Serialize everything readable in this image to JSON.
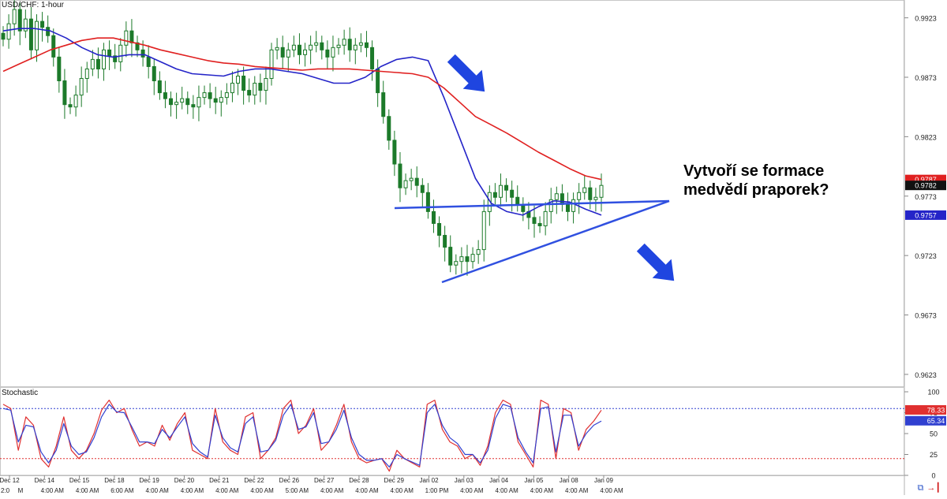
{
  "header": {
    "symbol_label": "USD/CHF: 1-hour"
  },
  "annotation": {
    "line1": "Vytvoří se formace",
    "line2": "medvědí praporek?"
  },
  "footer": {
    "left_text": "2:0",
    "icon_sync": "compare-icon",
    "icon_exit": "exit-icon"
  },
  "colors": {
    "candle": "#1c7a2a",
    "ma_fast": "#2424c8",
    "ma_slow": "#e02020",
    "trendline": "#3050e0",
    "arrow": "#1f45e0",
    "stoch_k": "#e03030",
    "stoch_d": "#3040d0"
  },
  "chart_data": [
    {
      "type": "candlestick",
      "title": "USD/CHF: 1-hour",
      "x_ticks": [
        "Dec 12",
        "Dec 14",
        "Dec 15",
        "Dec 18",
        "Dec 19",
        "Dec 20",
        "Dec 21",
        "Dec 22",
        "Dec 26",
        "Dec 27",
        "Dec 28",
        "Dec 29",
        "Jan 02",
        "Jan 03",
        "Jan 04",
        "Jan 05",
        "Jan 08",
        "Jan 09"
      ],
      "x_sub_ticks": [
        "M",
        "4:00 AM",
        "4:00 AM",
        "6:00 AM",
        "4:00 AM",
        "4:00 AM",
        "4:00 AM",
        "4:00 AM",
        "5:00 AM",
        "4:00 AM",
        "4:00 AM",
        "4:00 AM",
        "1:00 PM",
        "4:00 AM",
        "4:00 AM",
        "4:00 AM",
        "4:00 AM",
        "4:00 AM"
      ],
      "y_ticks": [
        "0.9923",
        "0.9873",
        "0.9823",
        "0.9773",
        "0.9723",
        "0.9673",
        "0.9623"
      ],
      "ylim": [
        0.9613,
        0.9938
      ],
      "price_labels": [
        {
          "value": "0.9787",
          "color": "#e02020"
        },
        {
          "value": "0.9782",
          "color": "#111111"
        },
        {
          "value": "0.9757",
          "color": "#2424c8"
        }
      ],
      "close_values": [
        0.9905,
        0.9918,
        0.993,
        0.9912,
        0.9922,
        0.9896,
        0.992,
        0.9915,
        0.9908,
        0.989,
        0.987,
        0.985,
        0.9848,
        0.9858,
        0.9872,
        0.988,
        0.9888,
        0.988,
        0.9896,
        0.9891,
        0.9886,
        0.99,
        0.9912,
        0.9902,
        0.9896,
        0.989,
        0.9882,
        0.987,
        0.986,
        0.9855,
        0.985,
        0.9852,
        0.9855,
        0.985,
        0.9848,
        0.9856,
        0.986,
        0.9855,
        0.9852,
        0.9856,
        0.986,
        0.9868,
        0.9874,
        0.9862,
        0.9858,
        0.9868,
        0.9862,
        0.9872,
        0.9896,
        0.9898,
        0.989,
        0.9896,
        0.99,
        0.9892,
        0.9896,
        0.99,
        0.9902,
        0.9896,
        0.989,
        0.9898,
        0.99,
        0.9905,
        0.9896,
        0.99,
        0.9902,
        0.9898,
        0.988,
        0.986,
        0.984,
        0.982,
        0.98,
        0.978,
        0.9786,
        0.9788,
        0.9782,
        0.9776,
        0.976,
        0.975,
        0.974,
        0.973,
        0.9715,
        0.9718,
        0.9722,
        0.9718,
        0.9724,
        0.9728,
        0.976,
        0.9776,
        0.9772,
        0.9782,
        0.9778,
        0.9772,
        0.9766,
        0.976,
        0.9755,
        0.975,
        0.9748,
        0.976,
        0.977,
        0.9775,
        0.9766,
        0.976,
        0.977,
        0.9776,
        0.978,
        0.977,
        0.9772,
        0.9782
      ],
      "series": [
        {
          "name": "MA fast",
          "color": "#2424c8",
          "values": [
            0.9912,
            0.9914,
            0.9914,
            0.9912,
            0.9906,
            0.9898,
            0.9892,
            0.989,
            0.9892,
            0.9892,
            0.9886,
            0.988,
            0.9876,
            0.9875,
            0.9874,
            0.9878,
            0.988,
            0.988,
            0.9878,
            0.9876,
            0.9872,
            0.9868,
            0.9868,
            0.9873,
            0.9882,
            0.9888,
            0.989,
            0.9887,
            0.9856,
            0.9822,
            0.9788,
            0.9767,
            0.976,
            0.9757,
            0.9764,
            0.9769,
            0.9768,
            0.9762,
            0.9757
          ]
        },
        {
          "name": "MA slow",
          "color": "#e02020",
          "values": [
            0.9878,
            0.9884,
            0.989,
            0.9896,
            0.99,
            0.9904,
            0.9906,
            0.9906,
            0.9903,
            0.99,
            0.9896,
            0.9893,
            0.989,
            0.9887,
            0.9885,
            0.9884,
            0.9882,
            0.9881,
            0.988,
            0.9879,
            0.988,
            0.988,
            0.988,
            0.9879,
            0.9878,
            0.9877,
            0.9876,
            0.9873,
            0.9864,
            0.9852,
            0.984,
            0.9833,
            0.9826,
            0.9818,
            0.981,
            0.9803,
            0.9796,
            0.979,
            0.9787
          ]
        }
      ]
    },
    {
      "type": "line",
      "title": "Stochastic",
      "y_ticks": [
        "100",
        "75",
        "50",
        "25",
        "0"
      ],
      "ylim": [
        0,
        100
      ],
      "levels": [
        80,
        20
      ],
      "value_labels": [
        {
          "value": "78.33",
          "color": "#e03030"
        },
        {
          "value": "65.34",
          "color": "#3040d0"
        }
      ],
      "series": [
        {
          "name": "%K",
          "color": "#e03030",
          "values": [
            85,
            80,
            30,
            70,
            60,
            20,
            10,
            35,
            70,
            30,
            20,
            30,
            50,
            78,
            90,
            75,
            80,
            55,
            35,
            40,
            35,
            60,
            42,
            62,
            75,
            30,
            25,
            20,
            80,
            40,
            30,
            25,
            70,
            75,
            20,
            30,
            45,
            80,
            90,
            50,
            60,
            80,
            30,
            40,
            60,
            85,
            40,
            20,
            15,
            18,
            20,
            5,
            30,
            20,
            15,
            10,
            85,
            90,
            55,
            40,
            35,
            20,
            25,
            12,
            35,
            75,
            90,
            85,
            40,
            25,
            10,
            90,
            85,
            20,
            80,
            75,
            30,
            55,
            65,
            78
          ]
        },
        {
          "name": "%D",
          "color": "#3040d0",
          "values": [
            80,
            78,
            40,
            60,
            58,
            28,
            15,
            30,
            62,
            35,
            25,
            28,
            45,
            70,
            85,
            76,
            75,
            58,
            40,
            40,
            38,
            55,
            45,
            58,
            70,
            38,
            28,
            22,
            72,
            45,
            33,
            28,
            62,
            70,
            28,
            30,
            42,
            72,
            85,
            55,
            58,
            75,
            38,
            40,
            55,
            78,
            45,
            25,
            18,
            18,
            20,
            10,
            25,
            20,
            16,
            12,
            75,
            85,
            60,
            45,
            38,
            25,
            25,
            15,
            30,
            68,
            85,
            82,
            45,
            28,
            15,
            80,
            82,
            28,
            72,
            72,
            35,
            50,
            60,
            65
          ]
        }
      ]
    }
  ]
}
